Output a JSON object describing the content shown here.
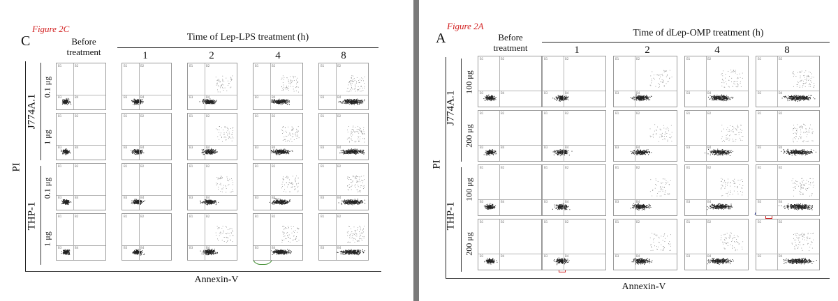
{
  "left_figure": {
    "figure_tag": "Figure 2C",
    "panel_letter": "C",
    "before_label_line1": "Before",
    "before_label_line2": "treatment",
    "time_title": "Time of Lep-LPS treatment (h)",
    "time_points": [
      "1",
      "2",
      "4",
      "8"
    ],
    "groups": [
      {
        "name": "J774A.1",
        "doses": [
          "0.1 μg",
          "1 μg"
        ]
      },
      {
        "name": "THP-1",
        "doses": [
          "0.1 μg",
          "1 μg"
        ]
      }
    ],
    "y_axis_label": "PI",
    "x_axis_label": "Annexin-V"
  },
  "right_figure": {
    "figure_tag": "Figure 2A",
    "panel_letter": "A",
    "before_label_line1": "Before",
    "before_label_line2": "treatment",
    "time_title": "Time of dLep-OMP treatment (h)",
    "time_points": [
      "1",
      "2",
      "4",
      "8"
    ],
    "groups": [
      {
        "name": "J774A.1",
        "doses": [
          "100 μg",
          "200 μg"
        ]
      },
      {
        "name": "THP-1",
        "doses": [
          "100 μg",
          "200 μg"
        ]
      }
    ],
    "y_axis_label": "PI",
    "x_axis_label": "Annexin-V"
  },
  "quadrant_labels": [
    "B1",
    "B2",
    "B3",
    "B4"
  ],
  "annotation_colors": {
    "purple": "#6b1f8a",
    "olive": "#8a8a1f",
    "teal": "#1f7a9a",
    "magenta": "#e040e0",
    "green": "#3a8a2a",
    "blue": "#1f3fcf",
    "yellow": "#e0c020",
    "red": "#d02020",
    "navy": "#1f2f9a"
  }
}
